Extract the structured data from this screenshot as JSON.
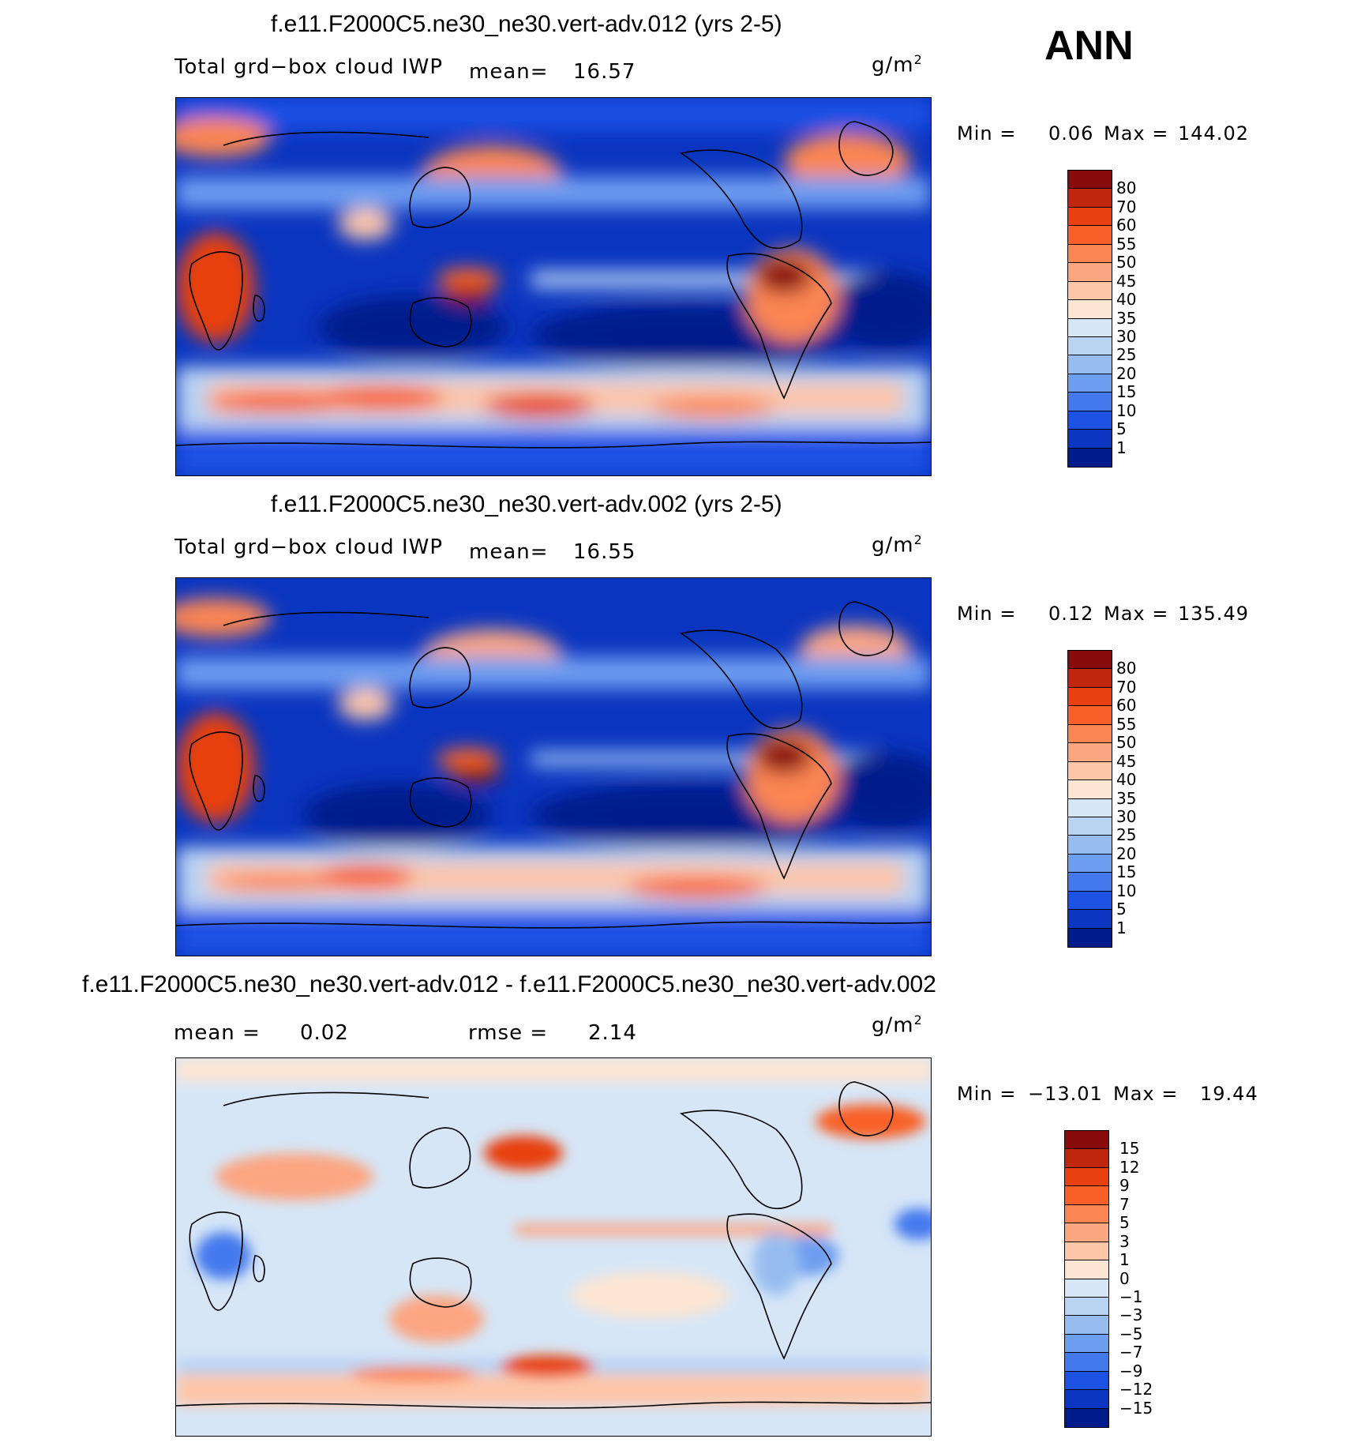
{
  "season": "ANN",
  "panels": [
    {
      "title": "f.e11.F2000C5.ne30_ne30.vert-adv.012 (yrs 2-5)",
      "variable": "Total grd−box cloud IWP",
      "mean_label": "mean=",
      "mean_value": "16.57",
      "units": "g/m",
      "units_sup": "2",
      "min_label": "Min =",
      "min_value": "0.06",
      "max_label": "Max =",
      "max_value": "144.02"
    },
    {
      "title": "f.e11.F2000C5.ne30_ne30.vert-adv.002 (yrs 2-5)",
      "variable": "Total grd−box cloud IWP",
      "mean_label": "mean=",
      "mean_value": "16.55",
      "units": "g/m",
      "units_sup": "2",
      "min_label": "Min =",
      "min_value": "0.12",
      "max_label": "Max =",
      "max_value": "135.49"
    },
    {
      "title": "f.e11.F2000C5.ne30_ne30.vert-adv.012 - f.e11.F2000C5.ne30_ne30.vert-adv.002",
      "mean_label": "mean =",
      "mean_value": "0.02",
      "rmse_label": "rmse =",
      "rmse_value": "2.14",
      "units": "g/m",
      "units_sup": "2",
      "min_label": "Min =",
      "min_value": "−13.01",
      "max_label": "Max =",
      "max_value": "19.44"
    }
  ],
  "chart_data": [
    {
      "type": "heatmap",
      "title": "f.e11.F2000C5.ne30_ne30.vert-adv.012 (yrs 2-5)",
      "variable": "Total grd-box cloud IWP",
      "units": "g/m2",
      "mean": 16.57,
      "min": 0.06,
      "max": 144.02,
      "colorbar_levels": [
        "80",
        "70",
        "60",
        "55",
        "50",
        "45",
        "40",
        "35",
        "30",
        "25",
        "20",
        "15",
        "10",
        "5",
        "1"
      ],
      "colorbar_colors": [
        "#8a0b0b",
        "#c0260d",
        "#e8400f",
        "#f86028",
        "#fb8553",
        "#fca581",
        "#fdc6a9",
        "#fde5d3",
        "#d6e6f7",
        "#b9d3f3",
        "#97bdf0",
        "#6e9ef0",
        "#4479ee",
        "#1c51e6",
        "#0a35c0",
        "#001b8c"
      ]
    },
    {
      "type": "heatmap",
      "title": "f.e11.F2000C5.ne30_ne30.vert-adv.002 (yrs 2-5)",
      "variable": "Total grd-box cloud IWP",
      "units": "g/m2",
      "mean": 16.55,
      "min": 0.12,
      "max": 135.49,
      "colorbar_levels": [
        "80",
        "70",
        "60",
        "55",
        "50",
        "45",
        "40",
        "35",
        "30",
        "25",
        "20",
        "15",
        "10",
        "5",
        "1"
      ],
      "colorbar_colors": [
        "#8a0b0b",
        "#c0260d",
        "#e8400f",
        "#f86028",
        "#fb8553",
        "#fca581",
        "#fdc6a9",
        "#fde5d3",
        "#d6e6f7",
        "#b9d3f3",
        "#97bdf0",
        "#6e9ef0",
        "#4479ee",
        "#1c51e6",
        "#0a35c0",
        "#001b8c"
      ]
    },
    {
      "type": "heatmap",
      "title": "f.e11.F2000C5.ne30_ne30.vert-adv.012 - f.e11.F2000C5.ne30_ne30.vert-adv.002",
      "units": "g/m2",
      "mean": 0.02,
      "rmse": 2.14,
      "min": -13.01,
      "max": 19.44,
      "colorbar_levels": [
        "15",
        "12",
        "9",
        "7",
        "5",
        "3",
        "1",
        "0",
        "−1",
        "−3",
        "−5",
        "−7",
        "−9",
        "−12",
        "−15"
      ],
      "colorbar_colors": [
        "#8a0b0b",
        "#c0260d",
        "#e8400f",
        "#f86028",
        "#fb8553",
        "#fca581",
        "#fdc6a9",
        "#fde5d3",
        "#d6e6f7",
        "#b9d3f3",
        "#97bdf0",
        "#6e9ef0",
        "#4479ee",
        "#1c51e6",
        "#0a35c0",
        "#001b8c"
      ]
    }
  ]
}
